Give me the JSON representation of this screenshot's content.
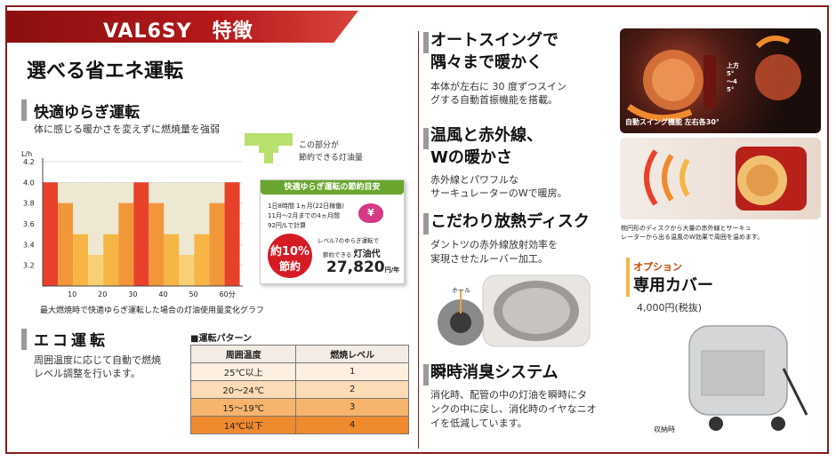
{
  "banner_title": "VAL6SY　特徴",
  "main_heading": "選べる省エネ運転",
  "comfort": {
    "title": "快適ゆらぎ運転",
    "desc": "体に感じる暖かさを変えずに燃焼量を強弱",
    "legend_line1": "この部分が",
    "legend_line2": "節約できる灯油量",
    "chart_caption": "最大燃焼時で快適ゆらぎ運転した場合の灯油使用量変化グラフ"
  },
  "savings": {
    "title": "快適ゆらぎ運転の節約目安",
    "cond1": "1日8時間 1ヵ月(22日稼働)",
    "cond2": "11月～2月までの4ヵ月間",
    "cond3": "92円/Lで計算",
    "badge_line1": "約10%",
    "badge_line2": "節約",
    "yen_icon": "¥",
    "note_line1": "レベル7のゆらぎ運転で",
    "note_line2": "節約できる",
    "note_emph": "灯油代",
    "amount": "27,820",
    "unit": "円/年"
  },
  "chart_data": {
    "type": "bar",
    "ylabel": "L/h",
    "y_ticks": [
      "4.2",
      "4.0",
      "3.8",
      "3.6",
      "3.4",
      "3.2"
    ],
    "ylim": [
      3.0,
      4.2
    ],
    "x_ticks": [
      "10",
      "20",
      "30",
      "40",
      "50",
      "60分"
    ],
    "x_tick_positions": [
      10,
      20,
      30,
      40,
      50,
      60
    ],
    "xlim": [
      0,
      66
    ],
    "bars": [
      {
        "x0": 0,
        "x1": 5,
        "value": 4.0
      },
      {
        "x0": 5,
        "x1": 10,
        "value": 3.8
      },
      {
        "x0": 10,
        "x1": 15,
        "value": 3.5
      },
      {
        "x0": 15,
        "x1": 20,
        "value": 3.3
      },
      {
        "x0": 20,
        "x1": 25,
        "value": 3.5
      },
      {
        "x0": 25,
        "x1": 30,
        "value": 3.8
      },
      {
        "x0": 30,
        "x1": 35,
        "value": 4.0
      },
      {
        "x0": 35,
        "x1": 40,
        "value": 3.8
      },
      {
        "x0": 40,
        "x1": 45,
        "value": 3.5
      },
      {
        "x0": 45,
        "x1": 50,
        "value": 3.3
      },
      {
        "x0": 50,
        "x1": 55,
        "value": 3.5
      },
      {
        "x0": 55,
        "x1": 60,
        "value": 3.8
      },
      {
        "x0": 60,
        "x1": 65,
        "value": 4.0
      }
    ],
    "full_colors": [
      "#e8412a",
      "#f2963a",
      "#f6b545",
      "#f8cf73"
    ],
    "saving_color": "#ece8d2",
    "legend_color": "#b9df6e"
  },
  "eco": {
    "title": "エコ運転",
    "desc_line1": "周囲温度に応じて自動で燃焼",
    "desc_line2": "レベル調整を行います。"
  },
  "pattern_table": {
    "title": "■運転パターン",
    "headers": [
      "周囲温度",
      "燃焼レベル"
    ],
    "rows": [
      {
        "temp": "25℃以上",
        "level": "1",
        "color": "#fdf0e0"
      },
      {
        "temp": "20～24℃",
        "level": "2",
        "color": "#fbdcb6"
      },
      {
        "temp": "15～19℃",
        "level": "3",
        "color": "#f7b46d"
      },
      {
        "temp": "14℃以下",
        "level": "4",
        "color": "#f08a2e"
      }
    ]
  },
  "auto_swing": {
    "title_line1": "オートスイングで",
    "title_line2": "隅々まで暖かく",
    "desc_line1": "本体が左右に 30 度ずつスイン",
    "desc_line2": "グする自動首振機能を搭載。",
    "photo_caption": "自動スイング機能 左右各30°",
    "photo_angle": "上方5°～45°"
  },
  "warm_air": {
    "title_line1": "温風と赤外線、",
    "title_line2": "Wの暖かさ",
    "desc_line1": "赤外線とパワフルな",
    "desc_line2": "サーキュレーターのWで暖房。",
    "photo_caption_line1": "椀円形のディスクから大量の赤外線とサーキュ",
    "photo_caption_line2": "レーターから出る温風のW効果で周囲を温めます。"
  },
  "disc": {
    "title": "こだわり放熱ディスク",
    "desc_line1": "ダントツの赤外線放射効率を",
    "desc_line2": "実現させたルーバー加工。",
    "hole_label": "ホール"
  },
  "deodor": {
    "title": "瞬時消臭システム",
    "desc_line1": "消化時、配管の中の灯油を瞬時にタ",
    "desc_line2": "ンクの中に戻し、消化時のイヤなニオ",
    "desc_line3": "イを低減しています。"
  },
  "option": {
    "label": "オプション",
    "title": "専用カバー",
    "price": "4,000円(税抜)",
    "caption": "収納時"
  }
}
